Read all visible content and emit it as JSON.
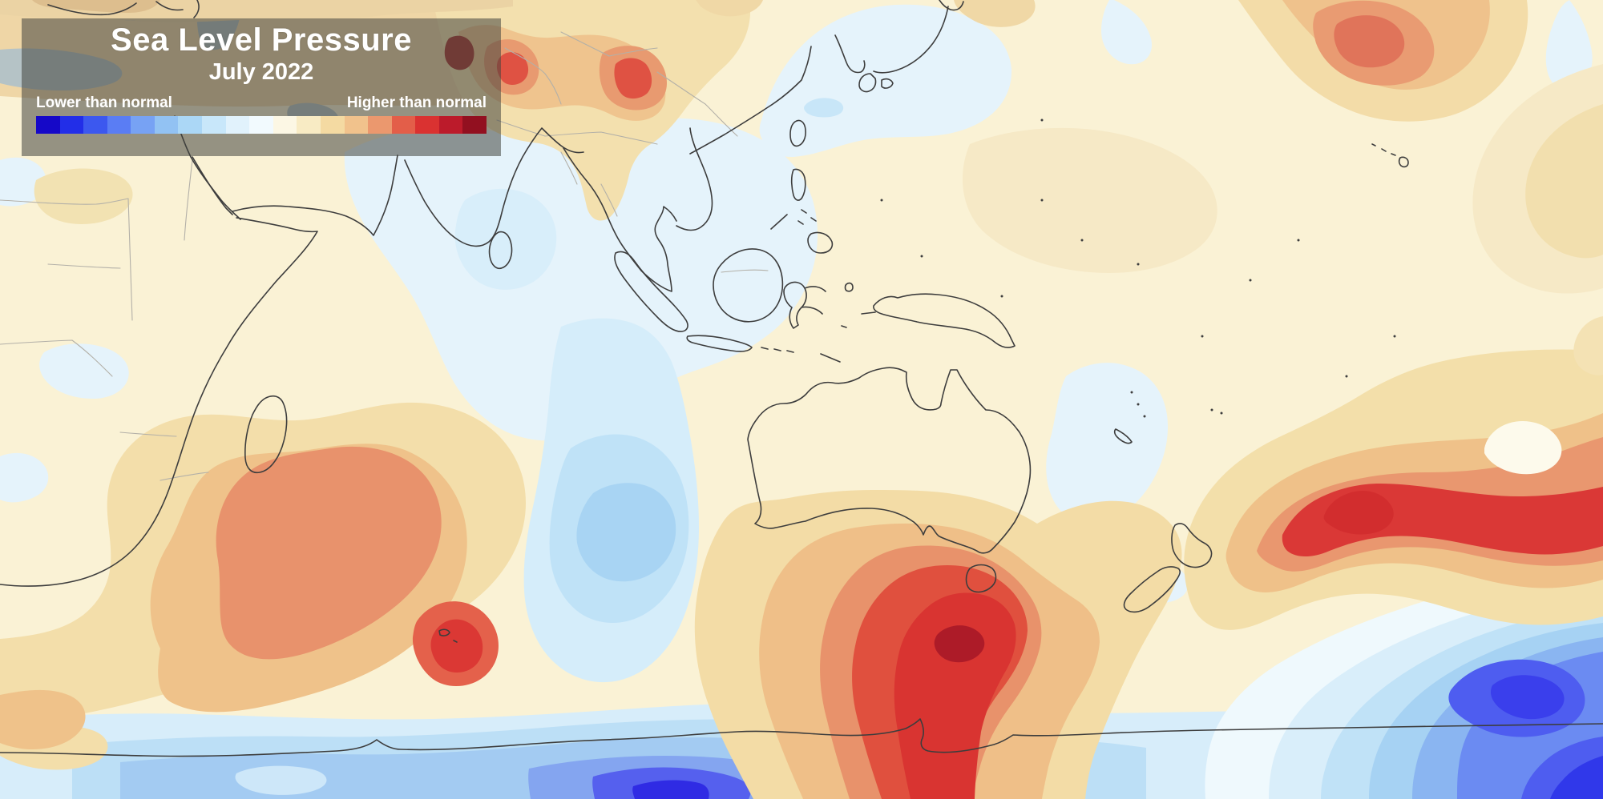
{
  "header": {
    "title": "Sea Level Pressure",
    "subtitle": "July 2022"
  },
  "legend": {
    "low_label": "Lower than normal",
    "high_label": "Higher than normal",
    "colors": [
      "#1508C8",
      "#222EE8",
      "#3C58EF",
      "#5A7DF4",
      "#77A2F4",
      "#92C2F3",
      "#ABD7F6",
      "#C8E7FA",
      "#E1F2FC",
      "#F2FAFE",
      "#FCF7E4",
      "#F8EBC4",
      "#F4DAA2",
      "#F1C28C",
      "#EB986E",
      "#E35E49",
      "#DA3231",
      "#BC1B2B",
      "#921020"
    ]
  },
  "map": {
    "kind": "filled-contour anomaly map",
    "theme": "Sea level pressure anomaly (difference from normal), July 2022",
    "extent": "Africa and Indian Ocean west, Asia north, central Pacific east, Antarctica south",
    "palette": {
      "background_cream": "#FAF2D5",
      "pale_blue": "#E5F3FB",
      "strong_low": "#2B22E2",
      "strong_high": "#AD1B28"
    },
    "anomaly_regions": [
      {
        "location": "Karakoram / western Himalaya",
        "anomaly": "higher than normal",
        "intensity": "strong"
      },
      {
        "location": "Tibetan Plateau",
        "anomaly": "higher than normal",
        "intensity": "strong"
      },
      {
        "location": "North Pacific north of Hawaii",
        "anomaly": "higher than normal",
        "intensity": "moderate to strong"
      },
      {
        "location": "Southwest Indian Ocean near Kerguelen",
        "anomaly": "higher than normal",
        "intensity": "strong"
      },
      {
        "location": "Southern Ocean south of Australia and Tasmania",
        "anomaly": "higher than normal",
        "intensity": "very strong"
      },
      {
        "location": "South Pacific east of New Zealand",
        "anomaly": "higher than normal",
        "intensity": "very strong"
      },
      {
        "location": "Subtropical Indian Ocean west of Australia",
        "anomaly": "lower than normal",
        "intensity": "weak to moderate"
      },
      {
        "location": "Antarctic coast south of the Indian Ocean",
        "anomaly": "lower than normal",
        "intensity": "strong"
      },
      {
        "location": "Southern Ocean far southeast of New Zealand",
        "anomaly": "lower than normal",
        "intensity": "strong"
      },
      {
        "location": "Maritime Continent, Bay of Bengal and South China Sea",
        "anomaly": "slightly lower than normal",
        "intensity": "weak"
      },
      {
        "location": "Sea of Japan and around Japan",
        "anomaly": "slightly lower than normal",
        "intensity": "weak"
      }
    ]
  }
}
